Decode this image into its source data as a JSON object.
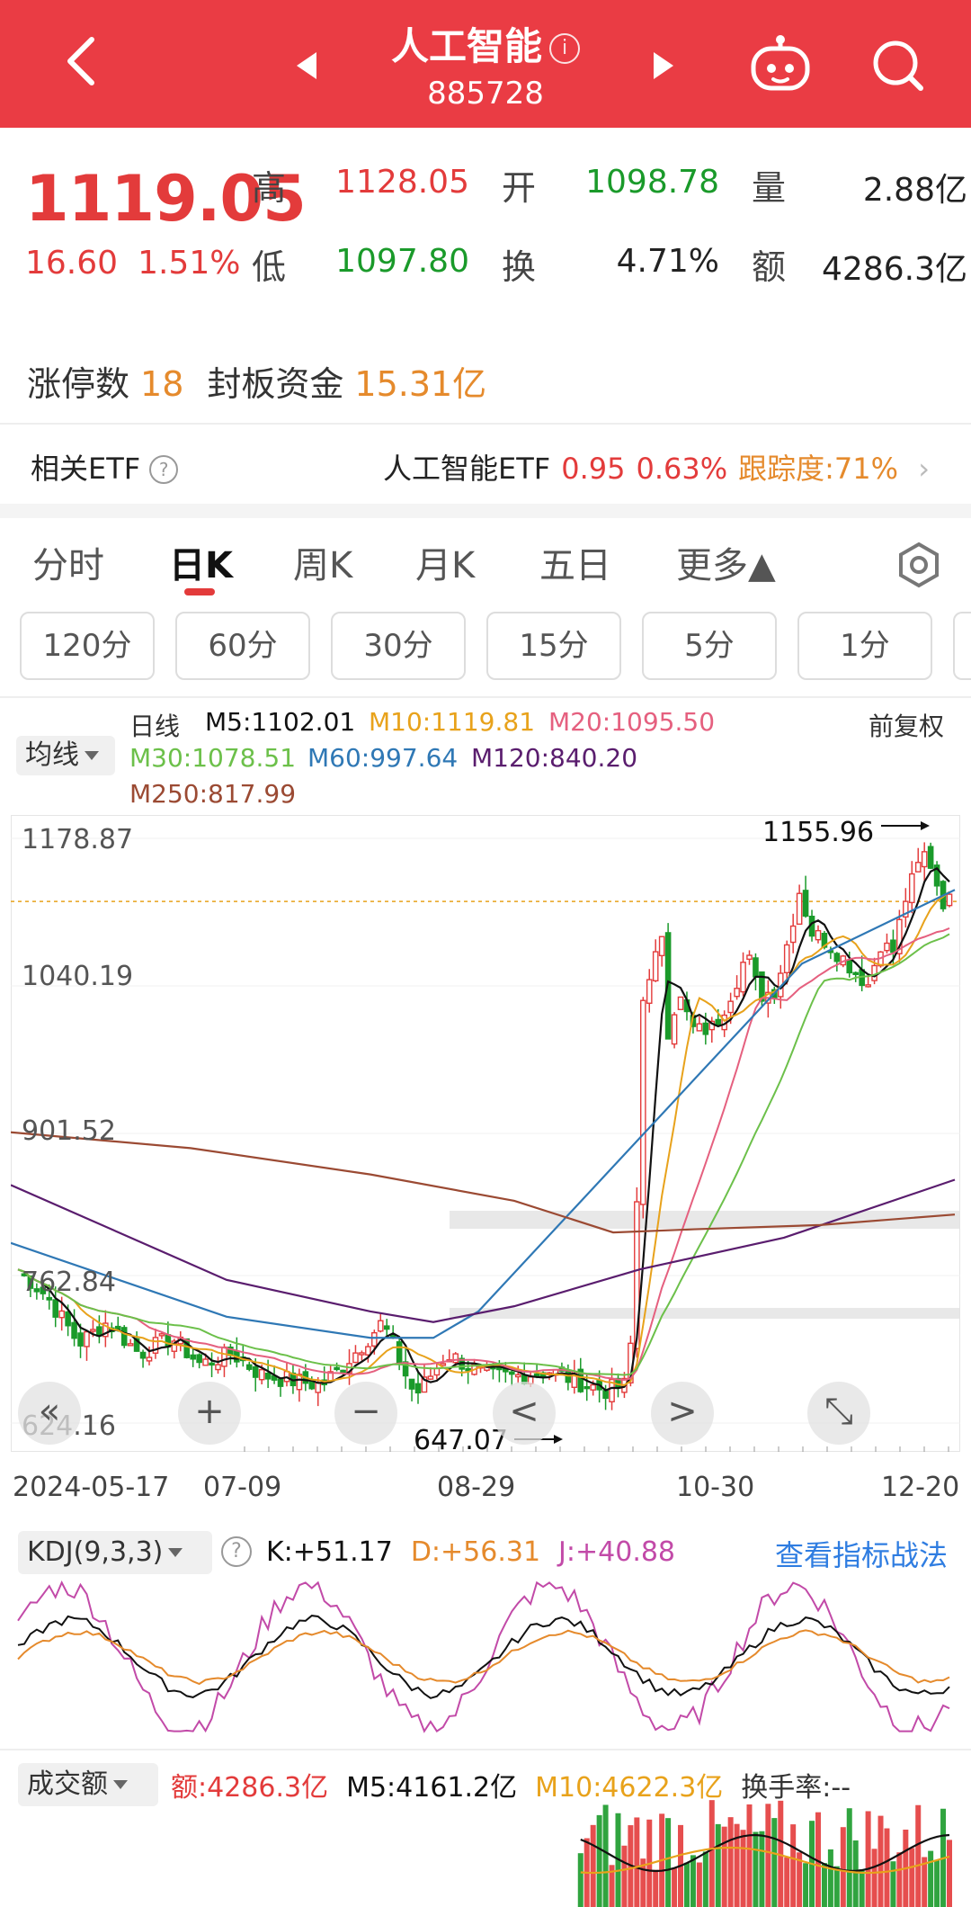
{
  "header": {
    "title": "人工智能",
    "info_icon": "i",
    "code": "885728"
  },
  "quote": {
    "price": "1119.05",
    "change": "16.60",
    "change_pct": "1.51%",
    "high_label": "高",
    "high": "1128.05",
    "open_label": "开",
    "open": "1098.78",
    "volume_label": "量",
    "volume": "2.88亿",
    "low_label": "低",
    "low": "1097.80",
    "turnover_label": "换",
    "turnover": "4.71%",
    "amount_label": "额",
    "amount": "4286.3亿"
  },
  "limit": {
    "count_label": "涨停数",
    "count": "18",
    "fund_label": "封板资金",
    "fund": "15.31亿"
  },
  "etf": {
    "label": "相关ETF",
    "help": "?",
    "name": "人工智能ETF",
    "price": "0.95",
    "pct": "0.63%",
    "tracking": "跟踪度:71%"
  },
  "tabs": [
    "分时",
    "日K",
    "周K",
    "月K",
    "五日",
    "更多▲"
  ],
  "intervals": [
    "120分",
    "60分",
    "30分",
    "15分",
    "5分",
    "1分"
  ],
  "ma_legend": {
    "selector": "均线",
    "daily": "日线",
    "m5": "M5:1102.01",
    "m10": "M10:1119.81",
    "m20": "M20:1095.50",
    "m30": "M30:1078.51",
    "m60": "M60:997.64",
    "m120": "M120:840.20",
    "m250": "M250:817.99",
    "adjust": "前复权"
  },
  "colors": {
    "up": "#e33b3b",
    "down": "#1a9a2a",
    "m5": "#111111",
    "m10": "#e8a21b",
    "m20": "#e5607f",
    "m30": "#6cc04a",
    "m60": "#2f78b5",
    "m120": "#5a1d6e",
    "m250": "#9b4a33",
    "kdj_k": "#111111",
    "kdj_d": "#e58a2c",
    "kdj_j": "#c24aa8"
  },
  "chart_data": {
    "type": "candlestick",
    "y_ticks": [
      "1178.87",
      "1040.19",
      "901.52",
      "762.84",
      "624.16"
    ],
    "ylim": [
      624.16,
      1178.87
    ],
    "x_ticks": [
      "2024-05-17",
      "07-09",
      "08-29",
      "10-30",
      "12-20"
    ],
    "max_label": "1155.96",
    "min_label": "647.07",
    "current": 1119.05
  },
  "controls": [
    "«",
    "+",
    "−",
    "<",
    ">",
    "⤡"
  ],
  "kdj": {
    "selector": "KDJ(9,3,3)",
    "help": "?",
    "k": "K:+51.17",
    "d": "D:+56.31",
    "j": "J:+40.88",
    "link": "查看指标战法"
  },
  "volume": {
    "selector": "成交额",
    "amount": "额:4286.3亿",
    "m5": "M5:4161.2亿",
    "m10": "M10:4622.3亿",
    "turnover": "换手率:--"
  }
}
